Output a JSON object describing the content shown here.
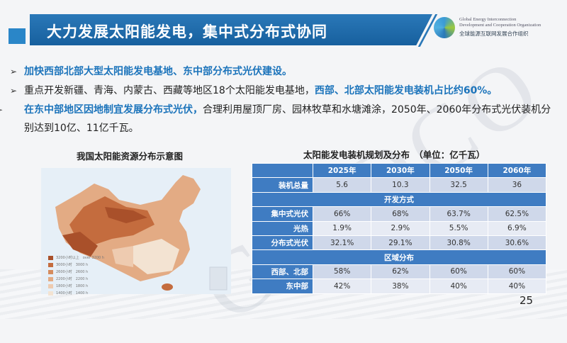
{
  "header": {
    "title": "大力发展太阳能发电，集中式分布式协同"
  },
  "logo": {
    "en_line1": "Global Energy Interconnection",
    "en_line2": "Development and Cooperation Organization",
    "cn": "全球能源互联网发展合作组织"
  },
  "bullets": [
    {
      "parts": [
        {
          "text": "加快西部北部大型太阳能发电基地、东中部分布式光伏建设。",
          "hl": true
        }
      ]
    },
    {
      "parts": [
        {
          "text": "重点开发新疆、青海、内蒙古、西藏等地区18个太阳能发电基地，",
          "hl": false
        },
        {
          "text": "西部、北部太阳能发电装机占比约60%。",
          "hl": true
        }
      ]
    },
    {
      "parts": [
        {
          "text": "在东中部地区因地制宜发展分布式光伏，",
          "hl": true
        },
        {
          "text": "合理利用屋顶厂房、园林牧草和水塘滩涂，2050年、2060年分布式光伏装机分别达到10亿、11亿千瓦。",
          "hl": false
        }
      ]
    }
  ],
  "map": {
    "title": "我国太阳能资源分布示意图",
    "legend": [
      {
        "label": "3200小时以上　over 3200 h",
        "color": "#a9502a"
      },
      {
        "label": "3000小时　3000 h",
        "color": "#c46c3e"
      },
      {
        "label": "2600小时　2600 h",
        "color": "#d58c5e"
      },
      {
        "label": "2200小时　2200 h",
        "color": "#e3ab84"
      },
      {
        "label": "1800小时　1800 h",
        "color": "#eecbb0"
      },
      {
        "label": "1400小时　1400 h",
        "color": "#f3e3d2"
      }
    ]
  },
  "table": {
    "title": "太阳能发电装机规划及分布　（单位：亿千瓦）",
    "columns": [
      "",
      "2025年",
      "2030年",
      "2050年",
      "2060年"
    ],
    "rows": [
      {
        "type": "data",
        "label": "装机总量",
        "values": [
          "5.6",
          "10.3",
          "32.5",
          "36"
        ]
      },
      {
        "type": "section",
        "label": "开发方式"
      },
      {
        "type": "data",
        "label": "集中式光伏",
        "values": [
          "66%",
          "68%",
          "63.7%",
          "62.5%"
        ]
      },
      {
        "type": "data",
        "label": "光热",
        "values": [
          "1.9%",
          "2.9%",
          "5.5%",
          "6.9%"
        ]
      },
      {
        "type": "data",
        "label": "分布式光伏",
        "values": [
          "32.1%",
          "29.1%",
          "30.8%",
          "30.6%"
        ]
      },
      {
        "type": "section",
        "label": "区域分布"
      },
      {
        "type": "data",
        "label": "西部、北部",
        "values": [
          "58%",
          "62%",
          "60%",
          "60%"
        ]
      },
      {
        "type": "data",
        "label": "东中部",
        "values": [
          "42%",
          "38%",
          "40%",
          "40%"
        ]
      }
    ]
  },
  "watermark": "GEIDCO",
  "page_number": "25",
  "colors": {
    "banner": "#1e6aa8",
    "highlight": "#1c74bb",
    "table_header": "#3f7cc2"
  }
}
